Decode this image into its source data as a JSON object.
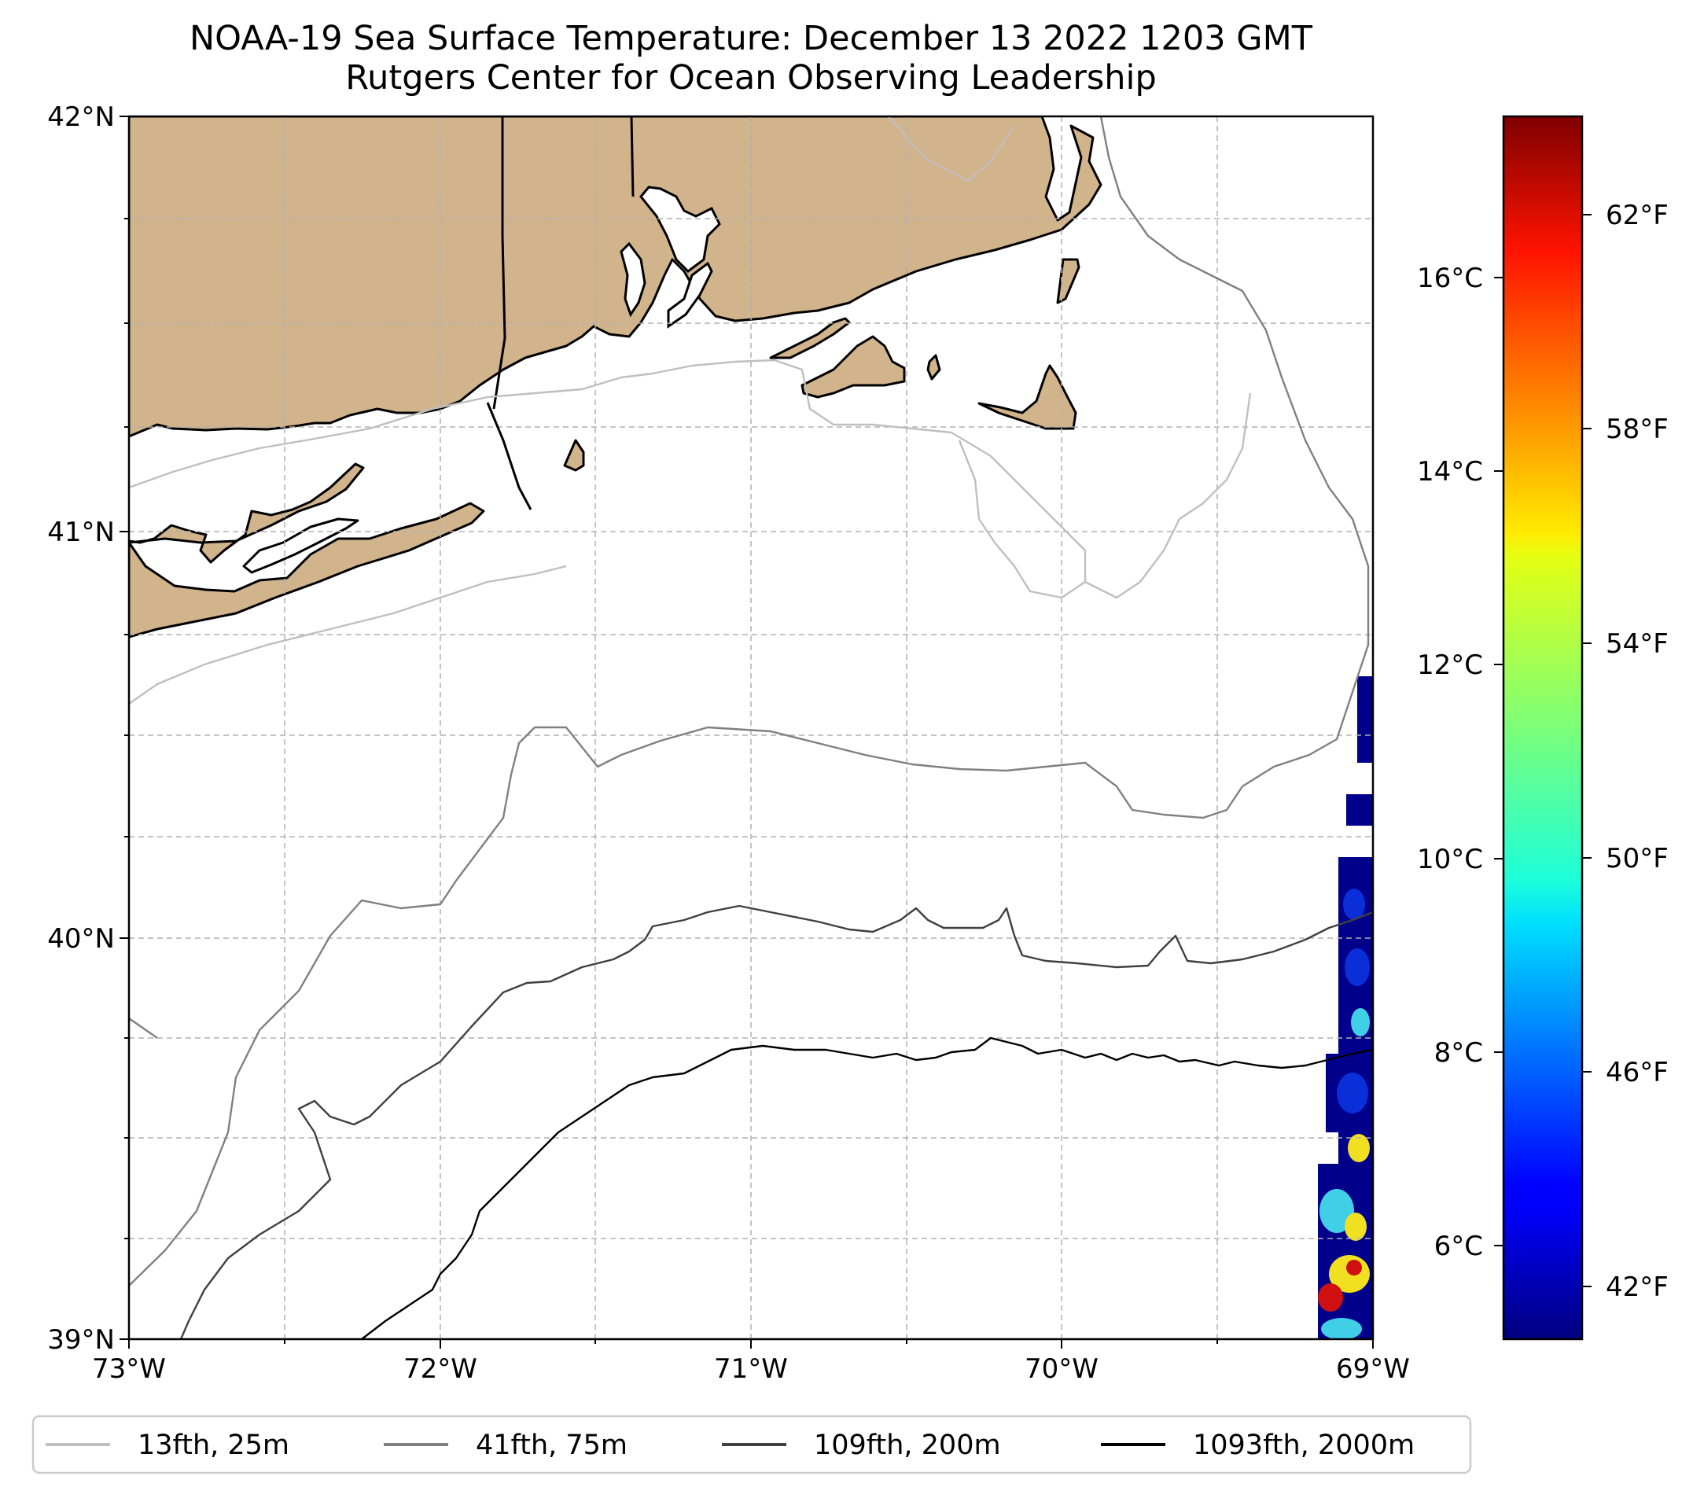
{
  "title": {
    "line1": "NOAA-19 Sea Surface Temperature: December 13 2022 1203 GMT",
    "line2": "Rutgers Center for Ocean Observing Leadership"
  },
  "map": {
    "lon_range": [
      -73,
      -69
    ],
    "lat_range": [
      39,
      42
    ],
    "lat_labels": [
      "42°N",
      "41°N",
      "40°N",
      "39°N"
    ],
    "lon_labels": [
      "73°W",
      "72°W",
      "71°W",
      "70°W",
      "69°W"
    ],
    "gridlines": true,
    "land_color": "#d2b48c",
    "regions": [
      "Long Island",
      "Connecticut",
      "Rhode Island",
      "Massachusetts",
      "Cape Cod",
      "Martha's Vineyard",
      "Nantucket",
      "Block Island"
    ]
  },
  "colorbar": {
    "colormap": "jet",
    "range_f": [
      40.6,
      64.1
    ],
    "fahrenheit_labels": [
      "62°F",
      "58°F",
      "54°F",
      "50°F",
      "46°F",
      "42°F"
    ],
    "celsius_labels": [
      "16°C",
      "14°C",
      "12°C",
      "10°C",
      "8°C",
      "6°C"
    ]
  },
  "legend": {
    "items": [
      {
        "label": "13fth, 25m",
        "color": "#bfbfbf"
      },
      {
        "label": "41fth, 75m",
        "color": "#808080"
      },
      {
        "label": "109fth, 200m",
        "color": "#404040"
      },
      {
        "label": "1093fth, 2000m",
        "color": "#000000"
      }
    ]
  },
  "sst_colors": {
    "dark_blue": "#00008b",
    "blue": "#0a2fd8",
    "cyan": "#3fd0e8",
    "yellow": "#f0e020",
    "red": "#d01010"
  }
}
